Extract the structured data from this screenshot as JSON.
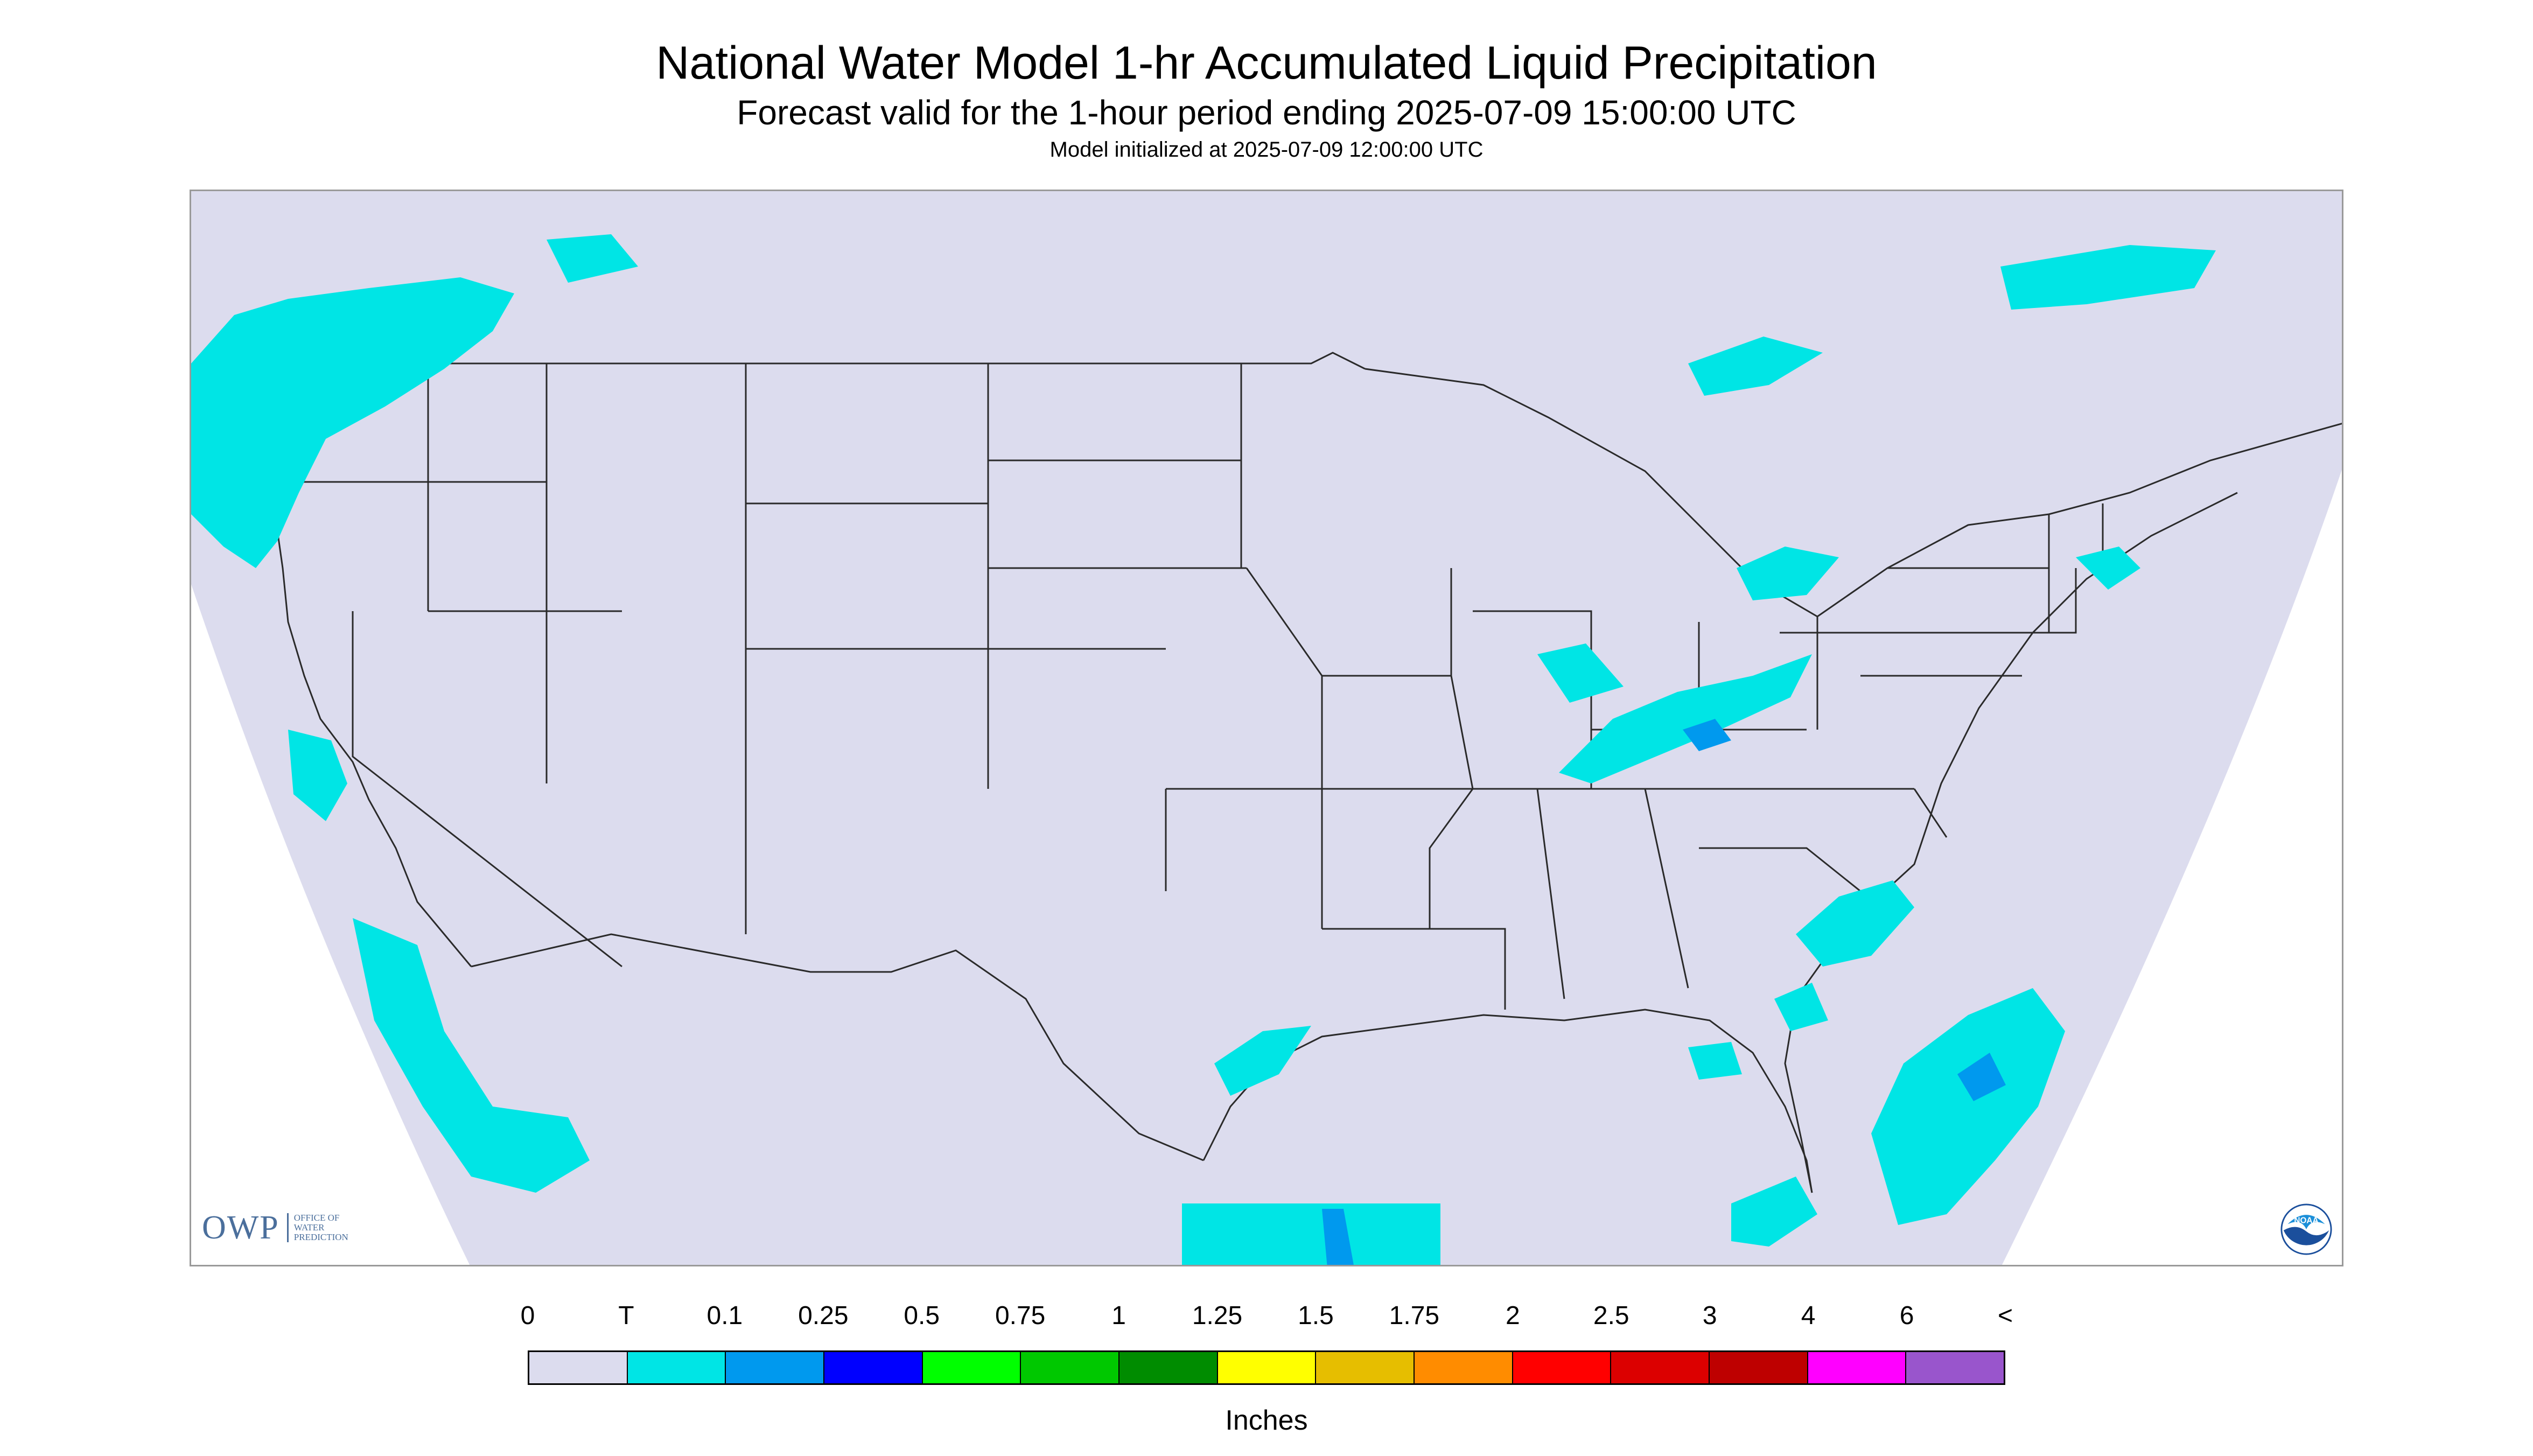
{
  "header": {
    "title": "National Water Model 1-hr Accumulated Liquid Precipitation",
    "subtitle": "Forecast valid for the 1-hour period ending 2025-07-09 15:00:00 UTC",
    "init_line": "Model initialized at 2025-07-09 12:00:00 UTC"
  },
  "colors": {
    "background": "#dcdcee",
    "boundary_line": "#2a2a2a",
    "trace": "#00e5e5",
    "light": "#0099ee"
  },
  "legend": {
    "tick_labels": [
      "0",
      "T",
      "0.1",
      "0.25",
      "0.5",
      "0.75",
      "1",
      "1.25",
      "1.5",
      "1.75",
      "2",
      "2.5",
      "3",
      "4",
      "6",
      "<"
    ],
    "colors": [
      "#dcdcee",
      "#00e5e5",
      "#0099ee",
      "#0000ff",
      "#00ff00",
      "#00c800",
      "#008c00",
      "#ffff00",
      "#e6be00",
      "#ff8c00",
      "#ff0000",
      "#dc0000",
      "#be0000",
      "#ff00ff",
      "#9955cc"
    ],
    "units": "Inches"
  },
  "logos": {
    "owp": "OWP",
    "owp_sub": "OFFICE OF WATER PREDICTION",
    "noaa": "NOAA"
  }
}
